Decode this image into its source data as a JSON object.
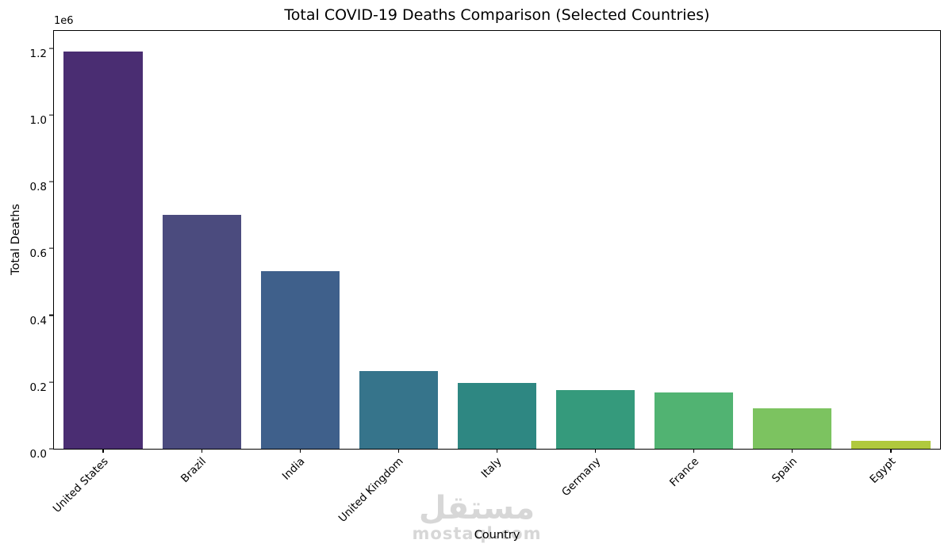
{
  "chart_data": {
    "type": "bar",
    "title": "Total COVID-19 Deaths Comparison (Selected Countries)",
    "xlabel": "Country",
    "ylabel": "Total Deaths",
    "offset_text": "1e6",
    "categories": [
      "United States",
      "Brazil",
      "India",
      "United Kingdom",
      "Italy",
      "Germany",
      "France",
      "Spain",
      "Egypt"
    ],
    "values": [
      1190000,
      702000,
      533000,
      232000,
      197000,
      175000,
      168000,
      121000,
      24800
    ],
    "bar_colors": [
      "#4a2d72",
      "#4b4b7e",
      "#3f608b",
      "#36748b",
      "#2e8782",
      "#359a7c",
      "#51b372",
      "#7cc360",
      "#b0c93d"
    ],
    "ylim": [
      0,
      1252000
    ],
    "yticks": {
      "values": [
        0,
        200000,
        400000,
        600000,
        800000,
        1000000,
        1200000
      ],
      "labels": [
        "0.0",
        "0.2",
        "0.4",
        "0.6",
        "0.8",
        "1.0",
        "1.2"
      ]
    },
    "grid": false,
    "legend": null,
    "bar_orientation": "vertical"
  },
  "watermark": {
    "arabic": "مستقل",
    "latin": "mostaql.com"
  }
}
